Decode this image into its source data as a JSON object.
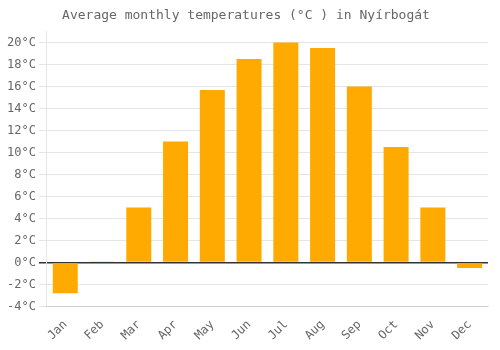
{
  "chart_data": {
    "type": "bar",
    "title": "Average monthly temperatures (°C ) in Nyírbogát",
    "categories": [
      "Jan",
      "Feb",
      "Mar",
      "Apr",
      "May",
      "Jun",
      "Jul",
      "Aug",
      "Sep",
      "Oct",
      "Nov",
      "Dec"
    ],
    "values": [
      -2.8,
      0.1,
      5.0,
      11.0,
      15.7,
      18.5,
      20.0,
      19.5,
      16.0,
      10.5,
      5.0,
      -0.5
    ],
    "color": "#FFAA00",
    "ylim": [
      -4,
      21
    ],
    "yticks": [
      {
        "value": -4,
        "label": "-4°C"
      },
      {
        "value": -2,
        "label": "-2°C"
      },
      {
        "value": 0,
        "label": "0°C"
      },
      {
        "value": 2,
        "label": "2°C"
      },
      {
        "value": 4,
        "label": "4°C"
      },
      {
        "value": 6,
        "label": "6°C"
      },
      {
        "value": 8,
        "label": "8°C"
      },
      {
        "value": 10,
        "label": "10°C"
      },
      {
        "value": 12,
        "label": "12°C"
      },
      {
        "value": 14,
        "label": "14°C"
      },
      {
        "value": 16,
        "label": "16°C"
      },
      {
        "value": 18,
        "label": "18°C"
      },
      {
        "value": 20,
        "label": "20°C"
      }
    ],
    "grid": true
  }
}
